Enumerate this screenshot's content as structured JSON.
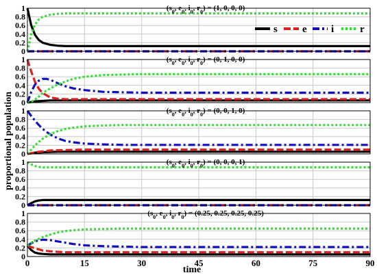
{
  "chart_data": {
    "type": "line",
    "xlabel": "time",
    "ylabel": "proportional population",
    "xlim": [
      0,
      90
    ],
    "ylim": [
      0,
      1
    ],
    "x_ticks": [
      "0",
      "15",
      "30",
      "45",
      "60",
      "75",
      "90"
    ],
    "y_ticks": [
      "0",
      "0.2",
      "0.4",
      "0.6",
      "0.8",
      "1"
    ],
    "grid": true,
    "legend": {
      "placement": "top-right of first panel",
      "entries": [
        "s",
        "e",
        "i",
        "r"
      ]
    },
    "series_styles": {
      "s": {
        "color": "#000000",
        "dash": "solid"
      },
      "e": {
        "color": "#e02020",
        "dash": "dashed"
      },
      "i": {
        "color": "#1010c0",
        "dash": "dash-dot"
      },
      "r": {
        "color": "#30e030",
        "dash": "dotted"
      }
    },
    "panels": [
      {
        "title": "(s0, e0, i0, r0) = (1, 0, 0, 0)",
        "initial": [
          1,
          0,
          0,
          0
        ],
        "series": [
          {
            "name": "s",
            "x": [
              0,
              1,
              2,
              3,
              4,
              6,
              8,
              10,
              15,
              20,
              30,
              45,
              60,
              75,
              90
            ],
            "values": [
              1,
              0.6,
              0.38,
              0.26,
              0.2,
              0.15,
              0.13,
              0.12,
              0.12,
              0.12,
              0.12,
              0.12,
              0.12,
              0.12,
              0.12
            ]
          },
          {
            "name": "e",
            "x": [
              0,
              90
            ],
            "values": [
              0,
              0
            ]
          },
          {
            "name": "i",
            "x": [
              0,
              90
            ],
            "values": [
              0,
              0
            ]
          },
          {
            "name": "r",
            "x": [
              0,
              1,
              2,
              3,
              4,
              6,
              8,
              10,
              15,
              20,
              30,
              45,
              60,
              75,
              90
            ],
            "values": [
              0,
              0.4,
              0.62,
              0.74,
              0.8,
              0.85,
              0.87,
              0.88,
              0.88,
              0.88,
              0.88,
              0.88,
              0.88,
              0.88,
              0.88
            ]
          }
        ]
      },
      {
        "title": "(s0, e0, i0, r0) = (0, 1, 0, 0)",
        "initial": [
          0,
          1,
          0,
          0
        ],
        "series": [
          {
            "name": "s",
            "x": [
              0,
              2,
              4,
              6,
              10,
              15,
              20,
              30,
              45,
              60,
              75,
              90
            ],
            "values": [
              0,
              0.03,
              0.04,
              0.05,
              0.05,
              0.05,
              0.05,
              0.05,
              0.05,
              0.05,
              0.05,
              0.05
            ]
          },
          {
            "name": "e",
            "x": [
              0,
              1,
              2,
              3,
              4,
              6,
              8,
              10,
              15,
              20,
              30,
              45,
              60,
              75,
              90
            ],
            "values": [
              1,
              0.72,
              0.48,
              0.32,
              0.22,
              0.12,
              0.09,
              0.08,
              0.08,
              0.08,
              0.08,
              0.08,
              0.08,
              0.08,
              0.08
            ]
          },
          {
            "name": "i",
            "x": [
              0,
              1,
              2,
              3,
              4,
              5,
              6,
              8,
              10,
              12,
              15,
              20,
              25,
              30,
              45,
              60,
              75,
              90
            ],
            "values": [
              0,
              0.25,
              0.42,
              0.51,
              0.55,
              0.55,
              0.53,
              0.45,
              0.38,
              0.33,
              0.29,
              0.25,
              0.24,
              0.23,
              0.23,
              0.23,
              0.23,
              0.23
            ]
          },
          {
            "name": "r",
            "x": [
              0,
              1,
              2,
              3,
              4,
              6,
              8,
              10,
              12,
              15,
              20,
              25,
              30,
              45,
              60,
              75,
              90
            ],
            "values": [
              0,
              0.02,
              0.07,
              0.14,
              0.22,
              0.33,
              0.42,
              0.49,
              0.55,
              0.6,
              0.64,
              0.65,
              0.66,
              0.66,
              0.66,
              0.66,
              0.66
            ]
          }
        ]
      },
      {
        "title": "(s0, e0, i0, r0) = (0, 0, 1, 0)",
        "initial": [
          0,
          0,
          1,
          0
        ],
        "series": [
          {
            "name": "s",
            "x": [
              0,
              2,
              4,
              8,
              15,
              30,
              45,
              60,
              75,
              90
            ],
            "values": [
              0,
              0.03,
              0.04,
              0.05,
              0.05,
              0.05,
              0.05,
              0.05,
              0.05,
              0.05
            ]
          },
          {
            "name": "e",
            "x": [
              0,
              3,
              6,
              10,
              15,
              20,
              30,
              45,
              60,
              75,
              90
            ],
            "values": [
              0,
              0.05,
              0.08,
              0.09,
              0.1,
              0.1,
              0.1,
              0.1,
              0.1,
              0.1,
              0.1
            ]
          },
          {
            "name": "i",
            "x": [
              0,
              1,
              2,
              3,
              4,
              6,
              8,
              10,
              12,
              15,
              20,
              25,
              30,
              45,
              60,
              75,
              90
            ],
            "values": [
              1,
              0.88,
              0.77,
              0.67,
              0.58,
              0.45,
              0.36,
              0.3,
              0.27,
              0.24,
              0.22,
              0.21,
              0.21,
              0.21,
              0.21,
              0.21,
              0.21
            ]
          },
          {
            "name": "r",
            "x": [
              0,
              1,
              2,
              3,
              4,
              6,
              8,
              10,
              12,
              15,
              20,
              25,
              30,
              45,
              60,
              75,
              90
            ],
            "values": [
              0,
              0.1,
              0.2,
              0.28,
              0.35,
              0.46,
              0.53,
              0.58,
              0.61,
              0.64,
              0.66,
              0.67,
              0.67,
              0.67,
              0.67,
              0.67,
              0.67
            ]
          }
        ]
      },
      {
        "title": "(s0, e0, i0, r0) = (0, 0, 0, 1)",
        "initial": [
          0,
          0,
          0,
          1
        ],
        "series": [
          {
            "name": "s",
            "x": [
              0,
              1,
              2,
              3,
              4,
              6,
              8,
              10,
              15,
              30,
              45,
              60,
              75,
              90
            ],
            "values": [
              0,
              0.05,
              0.09,
              0.11,
              0.12,
              0.12,
              0.12,
              0.12,
              0.12,
              0.12,
              0.12,
              0.12,
              0.12,
              0.12
            ]
          },
          {
            "name": "e",
            "x": [
              0,
              90
            ],
            "values": [
              0,
              0
            ]
          },
          {
            "name": "i",
            "x": [
              0,
              90
            ],
            "values": [
              0,
              0
            ]
          },
          {
            "name": "r",
            "x": [
              0,
              1,
              2,
              3,
              4,
              6,
              8,
              10,
              15,
              30,
              45,
              60,
              75,
              90
            ],
            "values": [
              1,
              0.95,
              0.91,
              0.89,
              0.88,
              0.88,
              0.88,
              0.88,
              0.88,
              0.88,
              0.88,
              0.88,
              0.88,
              0.88
            ]
          }
        ]
      },
      {
        "title": "(s0, e0, i0, r0) = (0.25, 0.25, 0.25, 0.25)",
        "initial": [
          0.25,
          0.25,
          0.25,
          0.25
        ],
        "series": [
          {
            "name": "s",
            "x": [
              0,
              1,
              2,
              3,
              4,
              6,
              8,
              10,
              15,
              30,
              45,
              60,
              75,
              90
            ],
            "values": [
              0.25,
              0.15,
              0.09,
              0.07,
              0.06,
              0.05,
              0.05,
              0.05,
              0.05,
              0.05,
              0.05,
              0.05,
              0.05,
              0.05
            ]
          },
          {
            "name": "e",
            "x": [
              0,
              1,
              2,
              4,
              6,
              8,
              10,
              15,
              20,
              30,
              45,
              60,
              75,
              90
            ],
            "values": [
              0.25,
              0.22,
              0.19,
              0.14,
              0.12,
              0.11,
              0.1,
              0.1,
              0.1,
              0.1,
              0.1,
              0.1,
              0.1,
              0.1
            ]
          },
          {
            "name": "i",
            "x": [
              0,
              1,
              2,
              3,
              4,
              6,
              8,
              10,
              12,
              15,
              20,
              25,
              30,
              45,
              60,
              75,
              90
            ],
            "values": [
              0.25,
              0.31,
              0.35,
              0.38,
              0.39,
              0.38,
              0.35,
              0.32,
              0.29,
              0.26,
              0.24,
              0.23,
              0.22,
              0.22,
              0.22,
              0.22,
              0.22
            ]
          },
          {
            "name": "r",
            "x": [
              0,
              1,
              2,
              3,
              4,
              6,
              8,
              10,
              12,
              15,
              20,
              25,
              30,
              45,
              60,
              75,
              90
            ],
            "values": [
              0.25,
              0.32,
              0.37,
              0.41,
              0.45,
              0.51,
              0.56,
              0.59,
              0.61,
              0.63,
              0.64,
              0.65,
              0.65,
              0.65,
              0.65,
              0.65,
              0.65
            ]
          }
        ]
      }
    ]
  }
}
